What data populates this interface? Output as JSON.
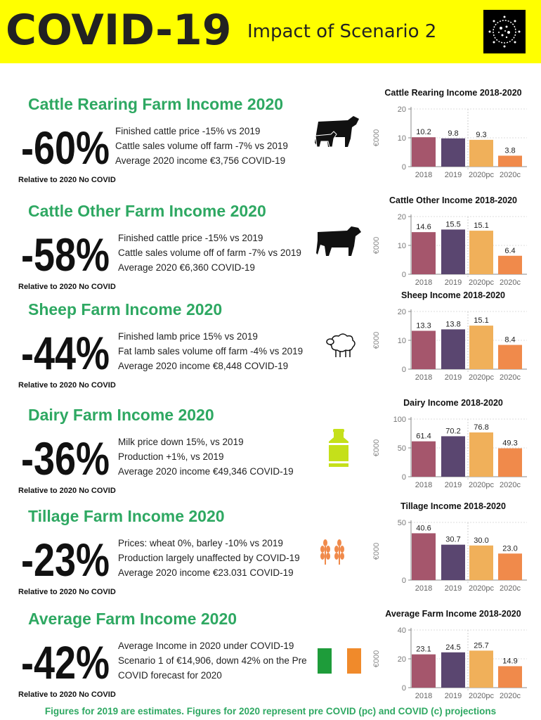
{
  "header": {
    "title": "COVID-19",
    "subtitle": "Impact of Scenario 2"
  },
  "colors": {
    "bar_2018": "#a5566c",
    "bar_2019": "#5a4670",
    "bar_2020pc": "#f0b05a",
    "bar_2020c": "#f08a4b",
    "title_green": "#2ea862",
    "banner": "#ffff00"
  },
  "sections": [
    {
      "title": "Cattle Rearing Farm Income 2020",
      "change": "-60%",
      "lines": [
        "Finished cattle price -15% vs 2019",
        "Cattle sales volume off farm -7% vs 2019",
        "Average 2020 income €3,756 COVID-19"
      ],
      "relative": "Relative to 2020 No COVID",
      "icon": "cattle-icon"
    },
    {
      "title": "Cattle Other Farm Income 2020",
      "change": "-58%",
      "lines": [
        "Finished cattle price -15% vs 2019",
        "Cattle sales volume off of farm -7% vs 2019",
        "Average 2020 €6,360 COVID-19"
      ],
      "relative": "Relative to 2020 No COVID",
      "icon": "bull-icon"
    },
    {
      "title": "Sheep Farm Income 2020",
      "change": "-44%",
      "lines": [
        "Finished lamb price 15% vs 2019",
        "Fat lamb sales volume off farm -4% vs 2019",
        "Average 2020 income €8,448 COVID-19"
      ],
      "relative": "Relative to 2020 No COVID",
      "icon": "sheep-icon"
    },
    {
      "title": "Dairy Farm Income 2020",
      "change": "-36%",
      "lines": [
        "Milk price down 15%, vs 2019",
        "Production +1%, vs 2019",
        "Average 2020 income €49,346 COVID-19"
      ],
      "relative": "Relative to 2020 No COVID",
      "icon": "milk-churn-icon"
    },
    {
      "title": "Tillage Farm Income 2020",
      "change": "-23%",
      "lines": [
        "Prices: wheat 0%, barley -10% vs 2019",
        "Production largely unaffected by COVID-19",
        "Average 2020 income €23.031 COVID-19"
      ],
      "relative": "Relative to 2020 No COVID",
      "icon": "wheat-icon"
    },
    {
      "title": "Average Farm Income 2020",
      "change": "-42%",
      "lines": [
        "Average Income in 2020 under COVID-19",
        "Scenario 1 of €14,906, down 42% on the Pre",
        "COVID forecast for 2020"
      ],
      "relative": "Relative to 2020 No COVID",
      "icon": "irish-flag-icon"
    }
  ],
  "chart_data": [
    {
      "type": "bar",
      "title": "Cattle Rearing Income 2018-2020",
      "categories": [
        "2018",
        "2019",
        "2020pc",
        "2020c"
      ],
      "values": [
        10.2,
        9.8,
        9.3,
        3.8
      ],
      "labels": [
        "10.2",
        "9.8",
        "9.3",
        "3.8"
      ],
      "ylabel": "€000",
      "ylim": [
        0,
        20
      ],
      "yticks": [
        "0",
        "10",
        "20"
      ]
    },
    {
      "type": "bar",
      "title": "Cattle Other Income 2018-2020",
      "categories": [
        "2018",
        "2019",
        "2020pc",
        "2020c"
      ],
      "values": [
        14.6,
        15.5,
        15.1,
        6.4
      ],
      "labels": [
        "14.6",
        "15.5",
        "15.1",
        "6.4"
      ],
      "ylabel": "€000",
      "ylim": [
        0,
        20
      ],
      "yticks": [
        "0",
        "10",
        "20"
      ]
    },
    {
      "type": "bar",
      "title": "Sheep Income 2018-2020",
      "categories": [
        "2018",
        "2019",
        "2020pc",
        "2020c"
      ],
      "values": [
        13.3,
        13.8,
        15.1,
        8.4
      ],
      "labels": [
        "13.3",
        "13.8",
        "15.1",
        "8.4"
      ],
      "ylabel": "€000",
      "ylim": [
        0,
        20
      ],
      "yticks": [
        "0",
        "10",
        "20"
      ]
    },
    {
      "type": "bar",
      "title": "Dairy Income 2018-2020",
      "categories": [
        "2018",
        "2019",
        "2020pc",
        "2020c"
      ],
      "values": [
        61.4,
        70.2,
        76.8,
        49.3
      ],
      "labels": [
        "61.4",
        "70.2",
        "76.8",
        "49.3"
      ],
      "ylabel": "€000",
      "ylim": [
        0,
        100
      ],
      "yticks": [
        "0",
        "50",
        "100"
      ]
    },
    {
      "type": "bar",
      "title": "Tillage Income 2018-2020",
      "categories": [
        "2018",
        "2019",
        "2020pc",
        "2020c"
      ],
      "values": [
        40.6,
        30.7,
        30.0,
        23.0
      ],
      "labels": [
        "40.6",
        "30.7",
        "30.0",
        "23.0"
      ],
      "ylabel": "€000",
      "ylim": [
        0,
        50
      ],
      "yticks": [
        "0",
        "50"
      ]
    },
    {
      "type": "bar",
      "title": "Average Farm Income 2018-2020",
      "categories": [
        "2018",
        "2019",
        "2020pc",
        "2020c"
      ],
      "values": [
        23.1,
        24.5,
        25.7,
        14.9
      ],
      "labels": [
        "23.1",
        "24.5",
        "25.7",
        "14.9"
      ],
      "ylabel": "€000",
      "ylim": [
        0,
        40
      ],
      "yticks": [
        "0",
        "20",
        "40"
      ]
    }
  ],
  "footer": "Figures for 2019 are estimates. Figures for 2020 represent pre COVID (pc) and COVID (c) projections"
}
